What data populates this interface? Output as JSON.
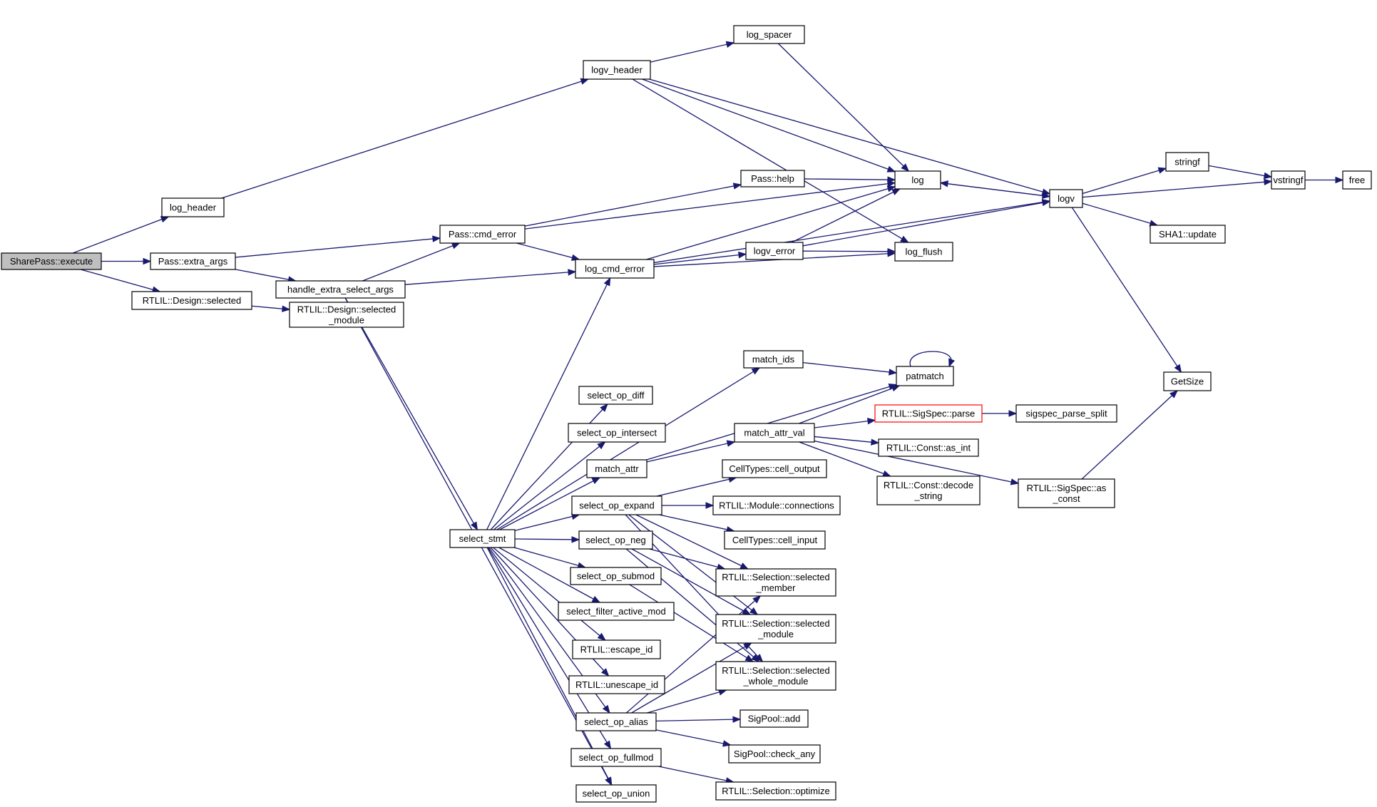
{
  "graph": {
    "colors": {
      "edge": "#191970",
      "root_fill": "#bfbfbf",
      "node_border": "#000000",
      "highlight_border": "#ff0000"
    },
    "nodes": [
      {
        "id": "sharepass_execute",
        "lines": [
          "SharePass::execute"
        ],
        "root": true
      },
      {
        "id": "log_header",
        "lines": [
          "log_header"
        ]
      },
      {
        "id": "pass_extra_args",
        "lines": [
          "Pass::extra_args"
        ]
      },
      {
        "id": "design_selected",
        "lines": [
          "RTLIL::Design::selected"
        ]
      },
      {
        "id": "design_selected_module",
        "lines": [
          "RTLIL::Design::selected",
          "_module"
        ]
      },
      {
        "id": "logv_header",
        "lines": [
          "logv_header"
        ]
      },
      {
        "id": "handle_extra_select_args",
        "lines": [
          "handle_extra_select_args"
        ]
      },
      {
        "id": "pass_cmd_error",
        "lines": [
          "Pass::cmd_error"
        ]
      },
      {
        "id": "log_spacer",
        "lines": [
          "log_spacer"
        ]
      },
      {
        "id": "pass_help",
        "lines": [
          "Pass::help"
        ]
      },
      {
        "id": "log_cmd_error",
        "lines": [
          "log_cmd_error"
        ]
      },
      {
        "id": "logv_error",
        "lines": [
          "logv_error"
        ]
      },
      {
        "id": "log",
        "lines": [
          "log"
        ]
      },
      {
        "id": "log_flush",
        "lines": [
          "log_flush"
        ]
      },
      {
        "id": "logv",
        "lines": [
          "logv"
        ]
      },
      {
        "id": "stringf",
        "lines": [
          "stringf"
        ]
      },
      {
        "id": "vstringf",
        "lines": [
          "vstringf"
        ]
      },
      {
        "id": "free",
        "lines": [
          "free"
        ]
      },
      {
        "id": "sha1_update",
        "lines": [
          "SHA1::update"
        ]
      },
      {
        "id": "getsize",
        "lines": [
          "GetSize"
        ]
      },
      {
        "id": "select_stmt",
        "lines": [
          "select_stmt"
        ]
      },
      {
        "id": "match_ids",
        "lines": [
          "match_ids"
        ]
      },
      {
        "id": "patmatch",
        "lines": [
          "patmatch"
        ]
      },
      {
        "id": "select_op_diff",
        "lines": [
          "select_op_diff"
        ]
      },
      {
        "id": "select_op_intersect",
        "lines": [
          "select_op_intersect"
        ]
      },
      {
        "id": "match_attr",
        "lines": [
          "match_attr"
        ]
      },
      {
        "id": "match_attr_val",
        "lines": [
          "match_attr_val"
        ]
      },
      {
        "id": "sigspec_parse",
        "lines": [
          "RTLIL::SigSpec::parse"
        ],
        "highlight": true
      },
      {
        "id": "sigspec_parse_split",
        "lines": [
          "sigspec_parse_split"
        ]
      },
      {
        "id": "const_as_int",
        "lines": [
          "RTLIL::Const::as_int"
        ]
      },
      {
        "id": "const_decode_string",
        "lines": [
          "RTLIL::Const::decode",
          "_string"
        ]
      },
      {
        "id": "sigspec_as_const",
        "lines": [
          "RTLIL::SigSpec::as",
          "_const"
        ]
      },
      {
        "id": "select_op_expand",
        "lines": [
          "select_op_expand"
        ]
      },
      {
        "id": "celltypes_cell_output",
        "lines": [
          "CellTypes::cell_output"
        ]
      },
      {
        "id": "module_connections",
        "lines": [
          "RTLIL::Module::connections"
        ]
      },
      {
        "id": "celltypes_cell_input",
        "lines": [
          "CellTypes::cell_input"
        ]
      },
      {
        "id": "select_op_neg",
        "lines": [
          "select_op_neg"
        ]
      },
      {
        "id": "select_op_submod",
        "lines": [
          "select_op_submod"
        ]
      },
      {
        "id": "selection_selected_member",
        "lines": [
          "RTLIL::Selection::selected",
          "_member"
        ]
      },
      {
        "id": "select_filter_active_mod",
        "lines": [
          "select_filter_active_mod"
        ]
      },
      {
        "id": "selection_selected_module",
        "lines": [
          "RTLIL::Selection::selected",
          "_module"
        ]
      },
      {
        "id": "escape_id",
        "lines": [
          "RTLIL::escape_id"
        ]
      },
      {
        "id": "unescape_id",
        "lines": [
          "RTLIL::unescape_id"
        ]
      },
      {
        "id": "selection_selected_whole_module",
        "lines": [
          "RTLIL::Selection::selected",
          "_whole_module"
        ]
      },
      {
        "id": "select_op_alias",
        "lines": [
          "select_op_alias"
        ]
      },
      {
        "id": "sigpool_add",
        "lines": [
          "SigPool::add"
        ]
      },
      {
        "id": "sigpool_check_any",
        "lines": [
          "SigPool::check_any"
        ]
      },
      {
        "id": "select_op_fullmod",
        "lines": [
          "select_op_fullmod"
        ]
      },
      {
        "id": "selection_optimize",
        "lines": [
          "RTLIL::Selection::optimize"
        ]
      },
      {
        "id": "select_op_union",
        "lines": [
          "select_op_union"
        ]
      }
    ],
    "edges": [
      [
        "sharepass_execute",
        "log_header"
      ],
      [
        "sharepass_execute",
        "pass_extra_args"
      ],
      [
        "sharepass_execute",
        "design_selected"
      ],
      [
        "log_header",
        "logv_header"
      ],
      [
        "logv_header",
        "log_spacer"
      ],
      [
        "logv_header",
        "log"
      ],
      [
        "logv_header",
        "log_flush"
      ],
      [
        "logv_header",
        "logv"
      ],
      [
        "log_spacer",
        "log"
      ],
      [
        "pass_extra_args",
        "pass_cmd_error"
      ],
      [
        "pass_extra_args",
        "handle_extra_select_args"
      ],
      [
        "design_selected",
        "design_selected_module"
      ],
      [
        "handle_extra_select_args",
        "pass_cmd_error"
      ],
      [
        "handle_extra_select_args",
        "log_cmd_error"
      ],
      [
        "handle_extra_select_args",
        "select_stmt"
      ],
      [
        "handle_extra_select_args",
        "select_op_union"
      ],
      [
        "pass_cmd_error",
        "log"
      ],
      [
        "pass_cmd_error",
        "pass_help"
      ],
      [
        "pass_cmd_error",
        "log_cmd_error"
      ],
      [
        "pass_help",
        "log"
      ],
      [
        "log_cmd_error",
        "log"
      ],
      [
        "log_cmd_error",
        "logv_error"
      ],
      [
        "log_cmd_error",
        "log_flush"
      ],
      [
        "log_cmd_error",
        "logv"
      ],
      [
        "logv_error",
        "log"
      ],
      [
        "logv_error",
        "log_flush"
      ],
      [
        "logv_error",
        "logv"
      ],
      [
        "log",
        "logv"
      ],
      [
        "logv",
        "log"
      ],
      [
        "logv",
        "stringf"
      ],
      [
        "logv",
        "vstringf"
      ],
      [
        "logv",
        "sha1_update"
      ],
      [
        "logv",
        "getsize"
      ],
      [
        "stringf",
        "vstringf"
      ],
      [
        "vstringf",
        "free"
      ],
      [
        "select_stmt",
        "log_cmd_error"
      ],
      [
        "select_stmt",
        "match_ids"
      ],
      [
        "select_stmt",
        "select_op_diff"
      ],
      [
        "select_stmt",
        "select_op_intersect"
      ],
      [
        "select_stmt",
        "match_attr"
      ],
      [
        "select_stmt",
        "select_op_expand"
      ],
      [
        "select_stmt",
        "select_op_neg"
      ],
      [
        "select_stmt",
        "select_op_submod"
      ],
      [
        "select_stmt",
        "select_filter_active_mod"
      ],
      [
        "select_stmt",
        "escape_id"
      ],
      [
        "select_stmt",
        "unescape_id"
      ],
      [
        "select_stmt",
        "select_op_alias"
      ],
      [
        "select_stmt",
        "select_op_fullmod"
      ],
      [
        "select_stmt",
        "select_op_union"
      ],
      [
        "match_ids",
        "patmatch"
      ],
      [
        "patmatch",
        "patmatch"
      ],
      [
        "match_attr",
        "patmatch"
      ],
      [
        "match_attr",
        "match_attr_val"
      ],
      [
        "match_attr_val",
        "patmatch"
      ],
      [
        "match_attr_val",
        "sigspec_parse"
      ],
      [
        "match_attr_val",
        "const_as_int"
      ],
      [
        "match_attr_val",
        "const_decode_string"
      ],
      [
        "match_attr_val",
        "sigspec_as_const"
      ],
      [
        "sigspec_parse",
        "sigspec_parse_split"
      ],
      [
        "sigspec_as_const",
        "getsize"
      ],
      [
        "select_op_expand",
        "celltypes_cell_output"
      ],
      [
        "select_op_expand",
        "module_connections"
      ],
      [
        "select_op_expand",
        "celltypes_cell_input"
      ],
      [
        "select_op_expand",
        "selection_selected_member"
      ],
      [
        "select_op_expand",
        "selection_selected_module"
      ],
      [
        "select_op_expand",
        "selection_selected_whole_module"
      ],
      [
        "select_op_neg",
        "selection_selected_member"
      ],
      [
        "select_op_neg",
        "selection_selected_module"
      ],
      [
        "select_op_neg",
        "selection_selected_whole_module"
      ],
      [
        "select_op_submod",
        "selection_selected_whole_module"
      ],
      [
        "select_op_alias",
        "selection_selected_member"
      ],
      [
        "select_op_alias",
        "selection_selected_module"
      ],
      [
        "select_op_alias",
        "selection_selected_whole_module"
      ],
      [
        "select_op_alias",
        "sigpool_add"
      ],
      [
        "select_op_alias",
        "sigpool_check_any"
      ],
      [
        "select_op_fullmod",
        "selection_optimize"
      ]
    ]
  }
}
